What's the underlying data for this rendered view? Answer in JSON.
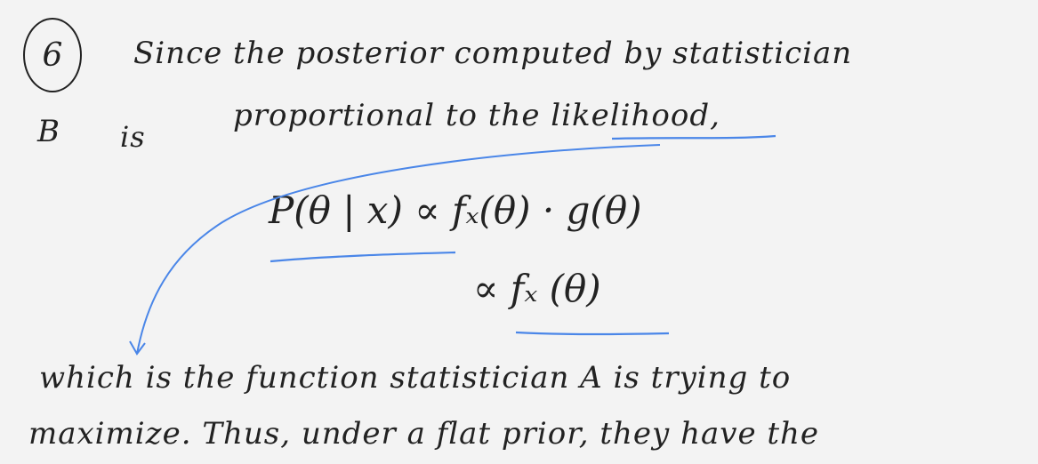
{
  "problem": {
    "number": "6"
  },
  "lines": {
    "line1": "Since the posterior computed by statistician",
    "line2_letter": "B",
    "line2_is": "is",
    "line2_rest": "proportional to the likelihood,",
    "eq1": "P(θ | x) ∝ fₓ(θ) · g(θ)",
    "eq2": "∝ fₓ (θ)",
    "line3": "which is the function statistician A is trying to",
    "line4": "maximize. Thus, under a flat prior, they have the"
  },
  "colors": {
    "ink": "#222222",
    "accent": "#4a86e8"
  }
}
